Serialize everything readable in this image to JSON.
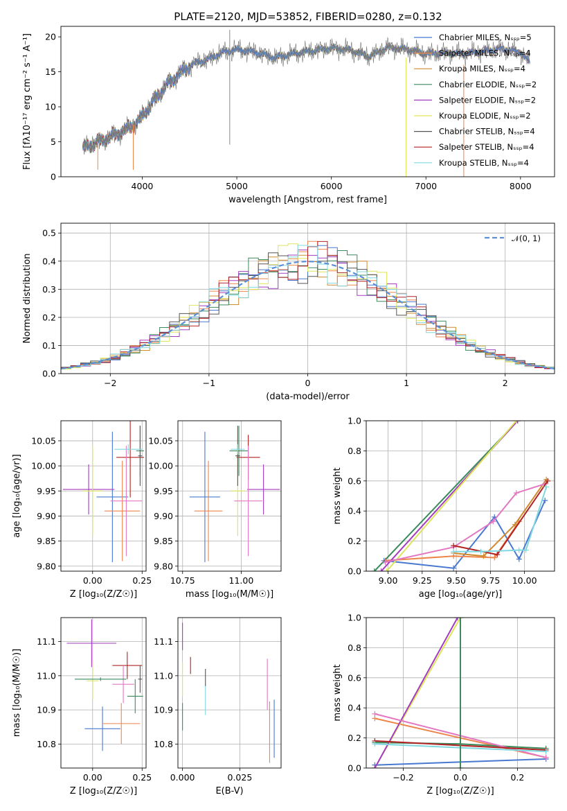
{
  "figure": {
    "title": "PLATE=2120, MJD=53852, FIBERID=0280, z=0.132"
  },
  "chart_data": [
    {
      "type": "line",
      "id": "spectrum",
      "xlabel": "wavelength [Angstrom, rest frame]",
      "ylabel": "Flux [fλ10⁻¹⁷ erg cm⁻² s⁻¹ A⁻¹]",
      "xlim": [
        3140,
        8360
      ],
      "ylim": [
        0,
        21.5
      ],
      "xticks": [
        4000,
        5000,
        6000,
        7000,
        8000
      ],
      "yticks": [
        0,
        5,
        10,
        15,
        20
      ],
      "legend_position": "right",
      "series": [
        {
          "name": "Chabrier MILES, Nₛₛₚ=5",
          "color": "#4878d0"
        },
        {
          "name": "Salpeter MILES, Nₛₛₚ=4",
          "color": "#ee854a"
        },
        {
          "name": "Kroupa MILES, Nₛₛₚ=4",
          "color": "#d08a2e"
        },
        {
          "name": "Chabrier ELODIE, Nₛₛₚ=2",
          "color": "#3a8a5c"
        },
        {
          "name": "Salpeter ELODIE, Nₛₛₚ=2",
          "color": "#a33bc0"
        },
        {
          "name": "Kroupa ELODIE, Nₛₛₚ=2",
          "color": "#dde55a"
        },
        {
          "name": "Chabrier STELIB, Nₛₛₚ=4",
          "color": "#555555"
        },
        {
          "name": "Salpeter STELIB, Nₛₛₚ=4",
          "color": "#b22222"
        },
        {
          "name": "Kroupa STELIB, Nₛₛₚ=4",
          "color": "#7fd8e0"
        }
      ],
      "continuum": {
        "x": [
          3350,
          3500,
          3650,
          3800,
          3950,
          4100,
          4250,
          4400,
          4550,
          4700,
          4850,
          5000,
          5200,
          5400,
          5600,
          5800,
          6000,
          6200,
          6400,
          6600,
          6800,
          7000,
          7200,
          7400,
          7600,
          7800,
          8000,
          8100
        ],
        "y": [
          4.0,
          4.8,
          5.6,
          6.5,
          7.8,
          10.5,
          13.0,
          14.8,
          16.2,
          16.8,
          17.8,
          18.2,
          17.8,
          17.0,
          17.6,
          18.0,
          18.4,
          18.1,
          17.2,
          18.5,
          18.2,
          17.6,
          17.7,
          17.6,
          17.9,
          18.3,
          17.8,
          16.3
        ]
      }
    },
    {
      "type": "line",
      "id": "residuals",
      "xlabel": "(data-model)/error",
      "ylabel": "Normed distribution",
      "xlim": [
        -2.5,
        2.5
      ],
      "ylim": [
        0,
        0.535
      ],
      "xticks": [
        -2,
        -1,
        0,
        1,
        2
      ],
      "yticks": [
        0.0,
        0.1,
        0.2,
        0.3,
        0.4,
        0.5
      ],
      "legend": "𝒩(0, 1)",
      "legend_position": "top-right",
      "reference_curve": "gaussian N(0,1)"
    },
    {
      "type": "scatter",
      "id": "age-vs-Z",
      "xlabel": "Z [log₁₀(Z/Z☉)]",
      "ylabel": "age [log₁₀(age/yr)]",
      "xlim": [
        -0.16,
        0.27
      ],
      "ylim": [
        9.79,
        10.09
      ],
      "xticks": [
        0.0,
        0.25
      ],
      "yticks": [
        9.8,
        9.85,
        9.9,
        9.95,
        10.0,
        10.05
      ],
      "points": [
        {
          "x": 0.1,
          "xerr": 0.08,
          "y": 9.938,
          "yerr": 0.13,
          "color": 0
        },
        {
          "x": 0.15,
          "xerr": 0.09,
          "y": 9.91,
          "yerr": 0.1,
          "color": 1
        },
        {
          "x": 0.19,
          "xerr": 0.07,
          "y": 10.017,
          "yerr": 0.08,
          "color": 7
        },
        {
          "x": 0.24,
          "xerr": 0.02,
          "y": 10.03,
          "yerr": 0.05,
          "color": 3
        },
        {
          "x": -0.02,
          "xerr": 0.13,
          "y": 9.953,
          "yerr": 0.05,
          "color": 4
        },
        {
          "x": 0.0,
          "xerr": 0.05,
          "y": 9.95,
          "yerr": 0.09,
          "color": 5
        },
        {
          "x": 0.17,
          "xerr": 0.08,
          "y": 9.93,
          "yerr": 0.11,
          "color": 8
        },
        {
          "x": 0.24,
          "xerr": 0.01,
          "y": 10.02,
          "yerr": 0.06,
          "color": 6
        },
        {
          "x": 0.18,
          "xerr": 0.07,
          "y": 10.033,
          "yerr": 0.01,
          "color": 9
        }
      ]
    },
    {
      "type": "scatter",
      "id": "age-vs-mass",
      "xlabel": "mass [log₁₀(M/M☉)]",
      "xlim": [
        10.73,
        11.17
      ],
      "ylim": [
        9.79,
        10.09
      ],
      "xticks": [
        10.75,
        11.0
      ],
      "yticks": [
        9.8,
        9.85,
        9.9,
        9.95,
        10.0,
        10.05
      ],
      "points": [
        {
          "x": 10.845,
          "xerr": 0.065,
          "y": 9.938,
          "yerr": 0.13,
          "color": 0
        },
        {
          "x": 10.86,
          "xerr": 0.06,
          "y": 9.91,
          "yerr": 0.1,
          "color": 1
        },
        {
          "x": 11.03,
          "xerr": 0.05,
          "y": 10.017,
          "yerr": 0.045,
          "color": 7
        },
        {
          "x": 10.99,
          "xerr": 0.04,
          "y": 10.03,
          "yerr": 0.05,
          "color": 3
        },
        {
          "x": 11.095,
          "xerr": 0.07,
          "y": 9.953,
          "yerr": 0.05,
          "color": 4
        },
        {
          "x": 10.985,
          "xerr": 0.03,
          "y": 9.95,
          "yerr": 0.09,
          "color": 5
        },
        {
          "x": 11.03,
          "xerr": 0.06,
          "y": 9.93,
          "yerr": 0.11,
          "color": 8
        },
        {
          "x": 10.985,
          "xerr": 0.01,
          "y": 10.02,
          "yerr": 0.06,
          "color": 6
        },
        {
          "x": 10.985,
          "xerr": 0.03,
          "y": 10.033,
          "yerr": 0.01,
          "color": 9
        }
      ]
    },
    {
      "type": "line",
      "id": "weight-vs-age",
      "xlabel": "age [log₁₀(age/yr)]",
      "ylabel": "mass weight",
      "xlim": [
        8.84,
        10.22
      ],
      "ylim": [
        0,
        1.0
      ],
      "xticks": [
        9.0,
        9.25,
        9.5,
        9.75,
        10.0
      ],
      "yticks": [
        0.0,
        0.2,
        0.4,
        0.6,
        0.8,
        1.0
      ],
      "series": [
        {
          "color": 0,
          "x": [
            8.97,
            9.48,
            9.78,
            9.96,
            10.15
          ],
          "y": [
            0.07,
            0.02,
            0.36,
            0.08,
            0.47
          ]
        },
        {
          "color": 1,
          "x": [
            8.98,
            9.48,
            9.78,
            9.96
          ],
          "y": [
            0.07,
            0.1,
            0.09,
            0.33
          ]
        },
        {
          "color": 3,
          "x": [
            8.9,
            9.95
          ],
          "y": [
            0.0,
            1.0
          ]
        },
        {
          "color": 4,
          "x": [
            8.95,
            9.95
          ],
          "y": [
            0.0,
            1.0
          ]
        },
        {
          "color": 5,
          "x": [
            8.99,
            9.94
          ],
          "y": [
            0.0,
            1.0
          ]
        },
        {
          "color": 2,
          "x": [
            9.48,
            9.7,
            9.93,
            10.16
          ],
          "y": [
            0.12,
            0.1,
            0.31,
            0.61
          ]
        },
        {
          "color": 8,
          "x": [
            8.98,
            9.48,
            9.77,
            9.94,
            10.15
          ],
          "y": [
            0.06,
            0.16,
            0.33,
            0.52,
            0.58
          ]
        },
        {
          "color": 7,
          "x": [
            9.48,
            9.8,
            10.17
          ],
          "y": [
            0.17,
            0.11,
            0.6
          ]
        },
        {
          "color": 9,
          "x": [
            9.48,
            9.68,
            9.96,
            10.01,
            10.16
          ],
          "y": [
            0.13,
            0.13,
            0.14,
            0.14,
            0.56
          ]
        }
      ]
    },
    {
      "type": "scatter",
      "id": "mass-vs-Z",
      "xlabel": "Z [log₁₀(Z/Z☉)]",
      "ylabel": "mass [log₁₀(M/M☉)]",
      "xlim": [
        -0.16,
        0.27
      ],
      "ylim": [
        10.73,
        11.17
      ],
      "xticks": [
        0.0,
        0.25
      ],
      "yticks": [
        10.8,
        10.9,
        11.0,
        11.1
      ],
      "points": [
        {
          "x": 0.05,
          "xerr": 0.09,
          "y": 10.845,
          "yerr": 0.065,
          "color": 0
        },
        {
          "x": 0.145,
          "xerr": 0.095,
          "y": 10.86,
          "yerr": 0.06,
          "color": 1
        },
        {
          "x": 0.175,
          "xerr": 0.075,
          "y": 11.03,
          "yerr": 0.04,
          "color": 7
        },
        {
          "x": 0.215,
          "xerr": 0.04,
          "y": 10.94,
          "yerr": 0.05,
          "color": 3
        },
        {
          "x": -0.005,
          "xerr": 0.125,
          "y": 11.095,
          "yerr": 0.07,
          "color": 4
        },
        {
          "x": 0.0,
          "xerr": 0.03,
          "y": 10.985,
          "yerr": 0.055,
          "color": 5
        },
        {
          "x": 0.155,
          "xerr": 0.055,
          "y": 10.975,
          "yerr": 0.055,
          "color": 8
        },
        {
          "x": 0.24,
          "xerr": 0.01,
          "y": 10.99,
          "yerr": 0.04,
          "color": 6
        },
        {
          "x": 0.04,
          "xerr": 0.13,
          "y": 10.99,
          "yerr": 0.005,
          "color": 3
        }
      ]
    },
    {
      "type": "scatter",
      "id": "mass-vs-EBV",
      "xlabel": "E(B-V)",
      "xlim": [
        -0.002,
        0.043
      ],
      "ylim": [
        10.73,
        11.17
      ],
      "xticks": [
        0.0,
        0.025
      ],
      "yticks": [
        10.8,
        10.9,
        11.0,
        11.1
      ],
      "points": [
        {
          "x": 0.04,
          "y": 10.845,
          "yerr": 0.085,
          "color": 0
        },
        {
          "x": 0.038,
          "y": 10.835,
          "yerr": 0.09,
          "color": 1
        },
        {
          "x": 0.0035,
          "y": 11.03,
          "yerr": 0.025,
          "color": 7
        },
        {
          "x": 0.01,
          "y": 10.93,
          "yerr": 0.045,
          "color": 9
        },
        {
          "x": 0.0,
          "y": 11.115,
          "yerr": 0.04,
          "color": 4
        },
        {
          "x": 0.0,
          "y": 10.99,
          "yerr": 0.05,
          "color": 5
        },
        {
          "x": 0.037,
          "y": 10.975,
          "yerr": 0.075,
          "color": 8
        },
        {
          "x": 0.01,
          "y": 10.995,
          "yerr": 0.025,
          "color": 6
        },
        {
          "x": 0.0,
          "y": 10.88,
          "yerr": 0.04,
          "color": 3
        }
      ]
    },
    {
      "type": "line",
      "id": "weight-vs-Z",
      "xlabel": "Z [log₁₀(Z/Z☉)]",
      "ylabel": "mass weight",
      "xlim": [
        -0.33,
        0.33
      ],
      "ylim": [
        0,
        1.0
      ],
      "xticks": [
        -0.2,
        0.0,
        0.2
      ],
      "yticks": [
        0.0,
        0.2,
        0.4,
        0.6,
        0.8,
        1.0
      ],
      "series": [
        {
          "color": 0,
          "x": [
            -0.3,
            0.3
          ],
          "y": [
            0.02,
            0.06
          ]
        },
        {
          "color": 1,
          "x": [
            -0.3,
            0.3
          ],
          "y": [
            0.33,
            0.07
          ]
        },
        {
          "color": 3,
          "x": [
            -0.3,
            0.0,
            0.3
          ],
          "y": [
            0.17,
            0.16,
            0.13
          ]
        },
        {
          "color": 5,
          "x": [
            -0.3,
            0.0
          ],
          "y": [
            0.0,
            1.0
          ]
        },
        {
          "color": 4,
          "x": [
            -0.3,
            -0.01
          ],
          "y": [
            0.0,
            1.0
          ]
        },
        {
          "color": 8,
          "x": [
            -0.3,
            0.3
          ],
          "y": [
            0.36,
            0.07
          ]
        },
        {
          "color": 7,
          "x": [
            -0.3,
            0.3
          ],
          "y": [
            0.18,
            0.12
          ]
        },
        {
          "color": 9,
          "x": [
            -0.3,
            0.3
          ],
          "y": [
            0.16,
            0.11
          ]
        },
        {
          "color": 3,
          "x": [
            0.0,
            0.0
          ],
          "y": [
            0.0,
            1.0
          ]
        }
      ]
    }
  ]
}
